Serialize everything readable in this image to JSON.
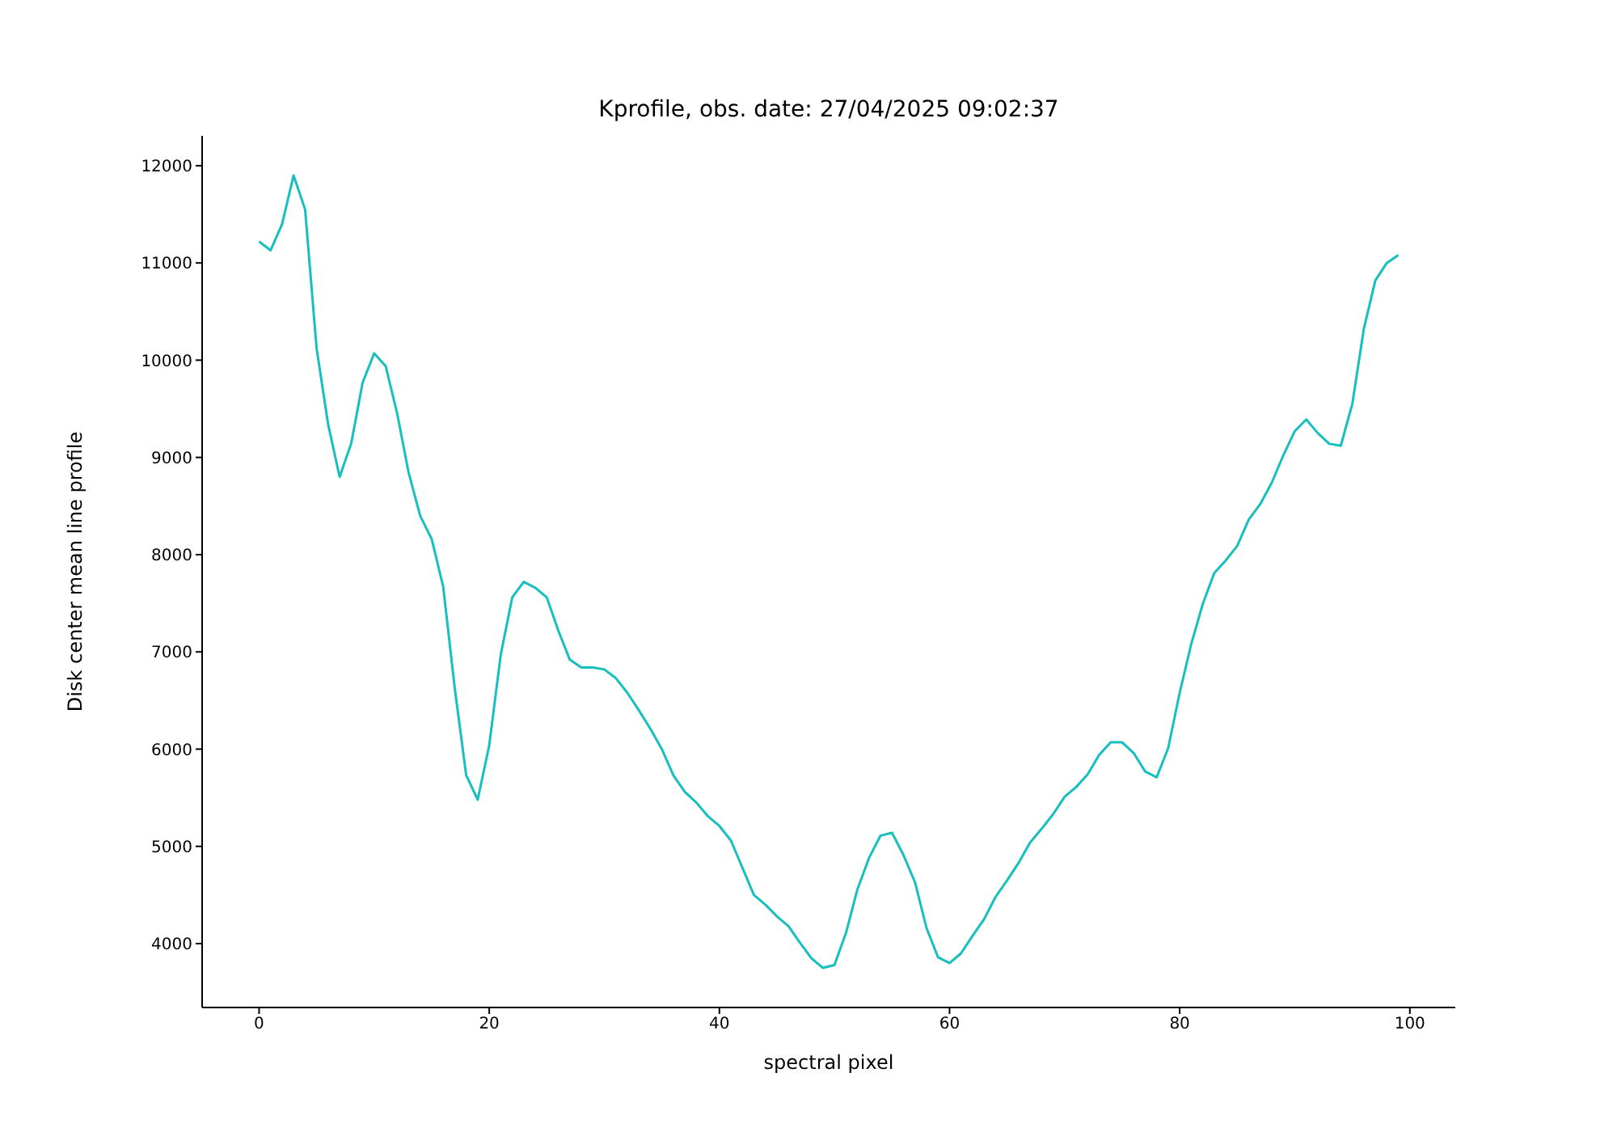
{
  "chart_data": {
    "type": "line",
    "title": "Kprofile, obs. date: 27/04/2025 09:02:37",
    "xlabel": "spectral pixel",
    "ylabel": "Disk center mean line profile",
    "x": [
      0,
      1,
      2,
      3,
      4,
      5,
      6,
      7,
      8,
      9,
      10,
      11,
      12,
      13,
      14,
      15,
      16,
      17,
      18,
      19,
      20,
      21,
      22,
      23,
      24,
      25,
      26,
      27,
      28,
      29,
      30,
      31,
      32,
      33,
      34,
      35,
      36,
      37,
      38,
      39,
      40,
      41,
      42,
      43,
      44,
      45,
      46,
      47,
      48,
      49,
      50,
      51,
      52,
      53,
      54,
      55,
      56,
      57,
      58,
      59,
      60,
      61,
      62,
      63,
      64,
      65,
      66,
      67,
      68,
      69,
      70,
      71,
      72,
      73,
      74,
      75,
      76,
      77,
      78,
      79,
      80,
      81,
      82,
      83,
      84,
      85,
      86,
      87,
      88,
      89,
      90,
      91,
      92,
      93,
      94,
      95,
      96,
      97,
      98,
      99
    ],
    "series": [
      {
        "color": "#17bfbf",
        "values": [
          11220,
          11130,
          11400,
          11900,
          11550,
          10120,
          9340,
          8800,
          9140,
          9770,
          10070,
          9940,
          9450,
          8840,
          8400,
          8160,
          7670,
          6630,
          5730,
          5480,
          6040,
          6970,
          7560,
          7720,
          7660,
          7560,
          7220,
          6920,
          6840,
          6840,
          6820,
          6730,
          6580,
          6400,
          6210,
          6000,
          5730,
          5560,
          5450,
          5310,
          5210,
          5060,
          4780,
          4500,
          4400,
          4280,
          4180,
          4010,
          3850,
          3750,
          3780,
          4110,
          4560,
          4880,
          5110,
          5140,
          4910,
          4630,
          4160,
          3860,
          3800,
          3900,
          4080,
          4250,
          4480,
          4650,
          4830,
          5040,
          5180,
          5330,
          5510,
          5610,
          5740,
          5940,
          6070,
          6070,
          5960,
          5770,
          5710,
          6010,
          6580,
          7080,
          7490,
          7810,
          7940,
          8090,
          8360,
          8520,
          8740,
          9020,
          9270,
          9390,
          9250,
          9140,
          9120,
          9550,
          10320,
          10820,
          11000,
          11080
        ]
      }
    ],
    "xlim": [
      -4.95,
      103.95
    ],
    "ylim": [
      3343,
      12307
    ],
    "xticks": [
      0,
      20,
      40,
      60,
      80,
      100
    ],
    "yticks": [
      4000,
      5000,
      6000,
      7000,
      8000,
      9000,
      10000,
      11000,
      12000
    ],
    "grid": false,
    "legend": false
  }
}
